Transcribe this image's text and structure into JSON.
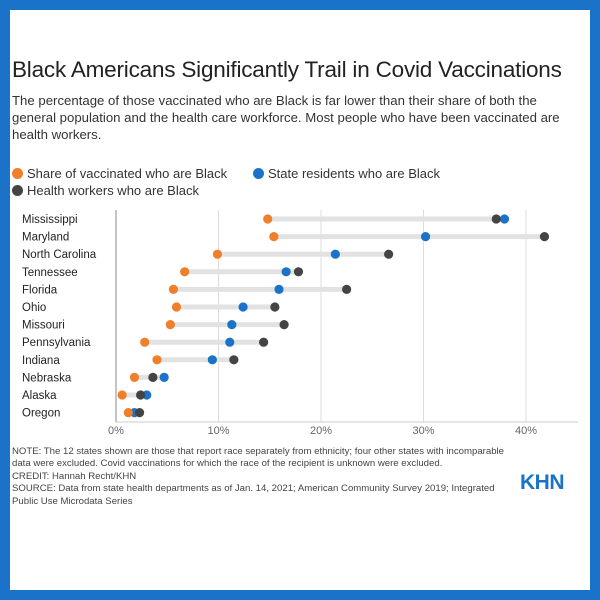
{
  "title": "Black Americans Significantly Trail in Covid Vaccinations",
  "subtitle": "The percentage of those vaccinated who are Black is far lower than their share of both the general population and the health care workforce. Most people who have been vaccinated are health workers.",
  "legend": {
    "vaccinated": "Share of vaccinated who are Black",
    "residents": "State residents who are Black",
    "health_workers": "Health workers who are Black"
  },
  "colors": {
    "vaccinated": "#f07f2a",
    "residents": "#1a73c9",
    "health_workers": "#444444",
    "range_bar": "#e2e2e2",
    "frame": "#1a73c9"
  },
  "notes": {
    "note": "NOTE: The 12 states shown are those that report race separately from ethnicity; four other states with incomparable data were excluded. Covid vaccinations for which the race of the recipient is unknown were excluded.",
    "credit": "CREDIT: Hannah Recht/KHN",
    "source": "SOURCE: Data from state health departments as of Jan. 14, 2021; American Community Survey 2019; Integrated Public Use Microdata Series"
  },
  "logo": "KHN",
  "chart_data": {
    "type": "scatter",
    "title": "Black Americans Significantly Trail in Covid Vaccinations",
    "xlabel": "",
    "ylabel": "",
    "xlim": [
      0,
      45
    ],
    "x_ticks": [
      "0%",
      "10%",
      "20%",
      "30%",
      "40%"
    ],
    "x_tick_values": [
      0,
      10,
      20,
      30,
      40
    ],
    "grid": "vertical",
    "legend_placement": "top-left",
    "categories": [
      "Mississippi",
      "Maryland",
      "North Carolina",
      "Tennessee",
      "Florida",
      "Ohio",
      "Missouri",
      "Pennsylvania",
      "Indiana",
      "Nebraska",
      "Alaska",
      "Oregon"
    ],
    "series": [
      {
        "name": "Share of vaccinated who are Black",
        "values": [
          14.8,
          15.4,
          9.9,
          6.7,
          5.6,
          5.9,
          5.3,
          2.8,
          4.0,
          1.8,
          0.6,
          1.2
        ]
      },
      {
        "name": "State residents who are Black",
        "values": [
          37.9,
          30.2,
          21.4,
          16.6,
          15.9,
          12.4,
          11.3,
          11.1,
          9.4,
          4.7,
          3.0,
          1.8
        ]
      },
      {
        "name": "Health workers who are Black",
        "values": [
          37.1,
          41.8,
          26.6,
          17.8,
          22.5,
          15.5,
          16.4,
          14.4,
          11.5,
          3.6,
          2.4,
          2.3
        ]
      }
    ]
  }
}
